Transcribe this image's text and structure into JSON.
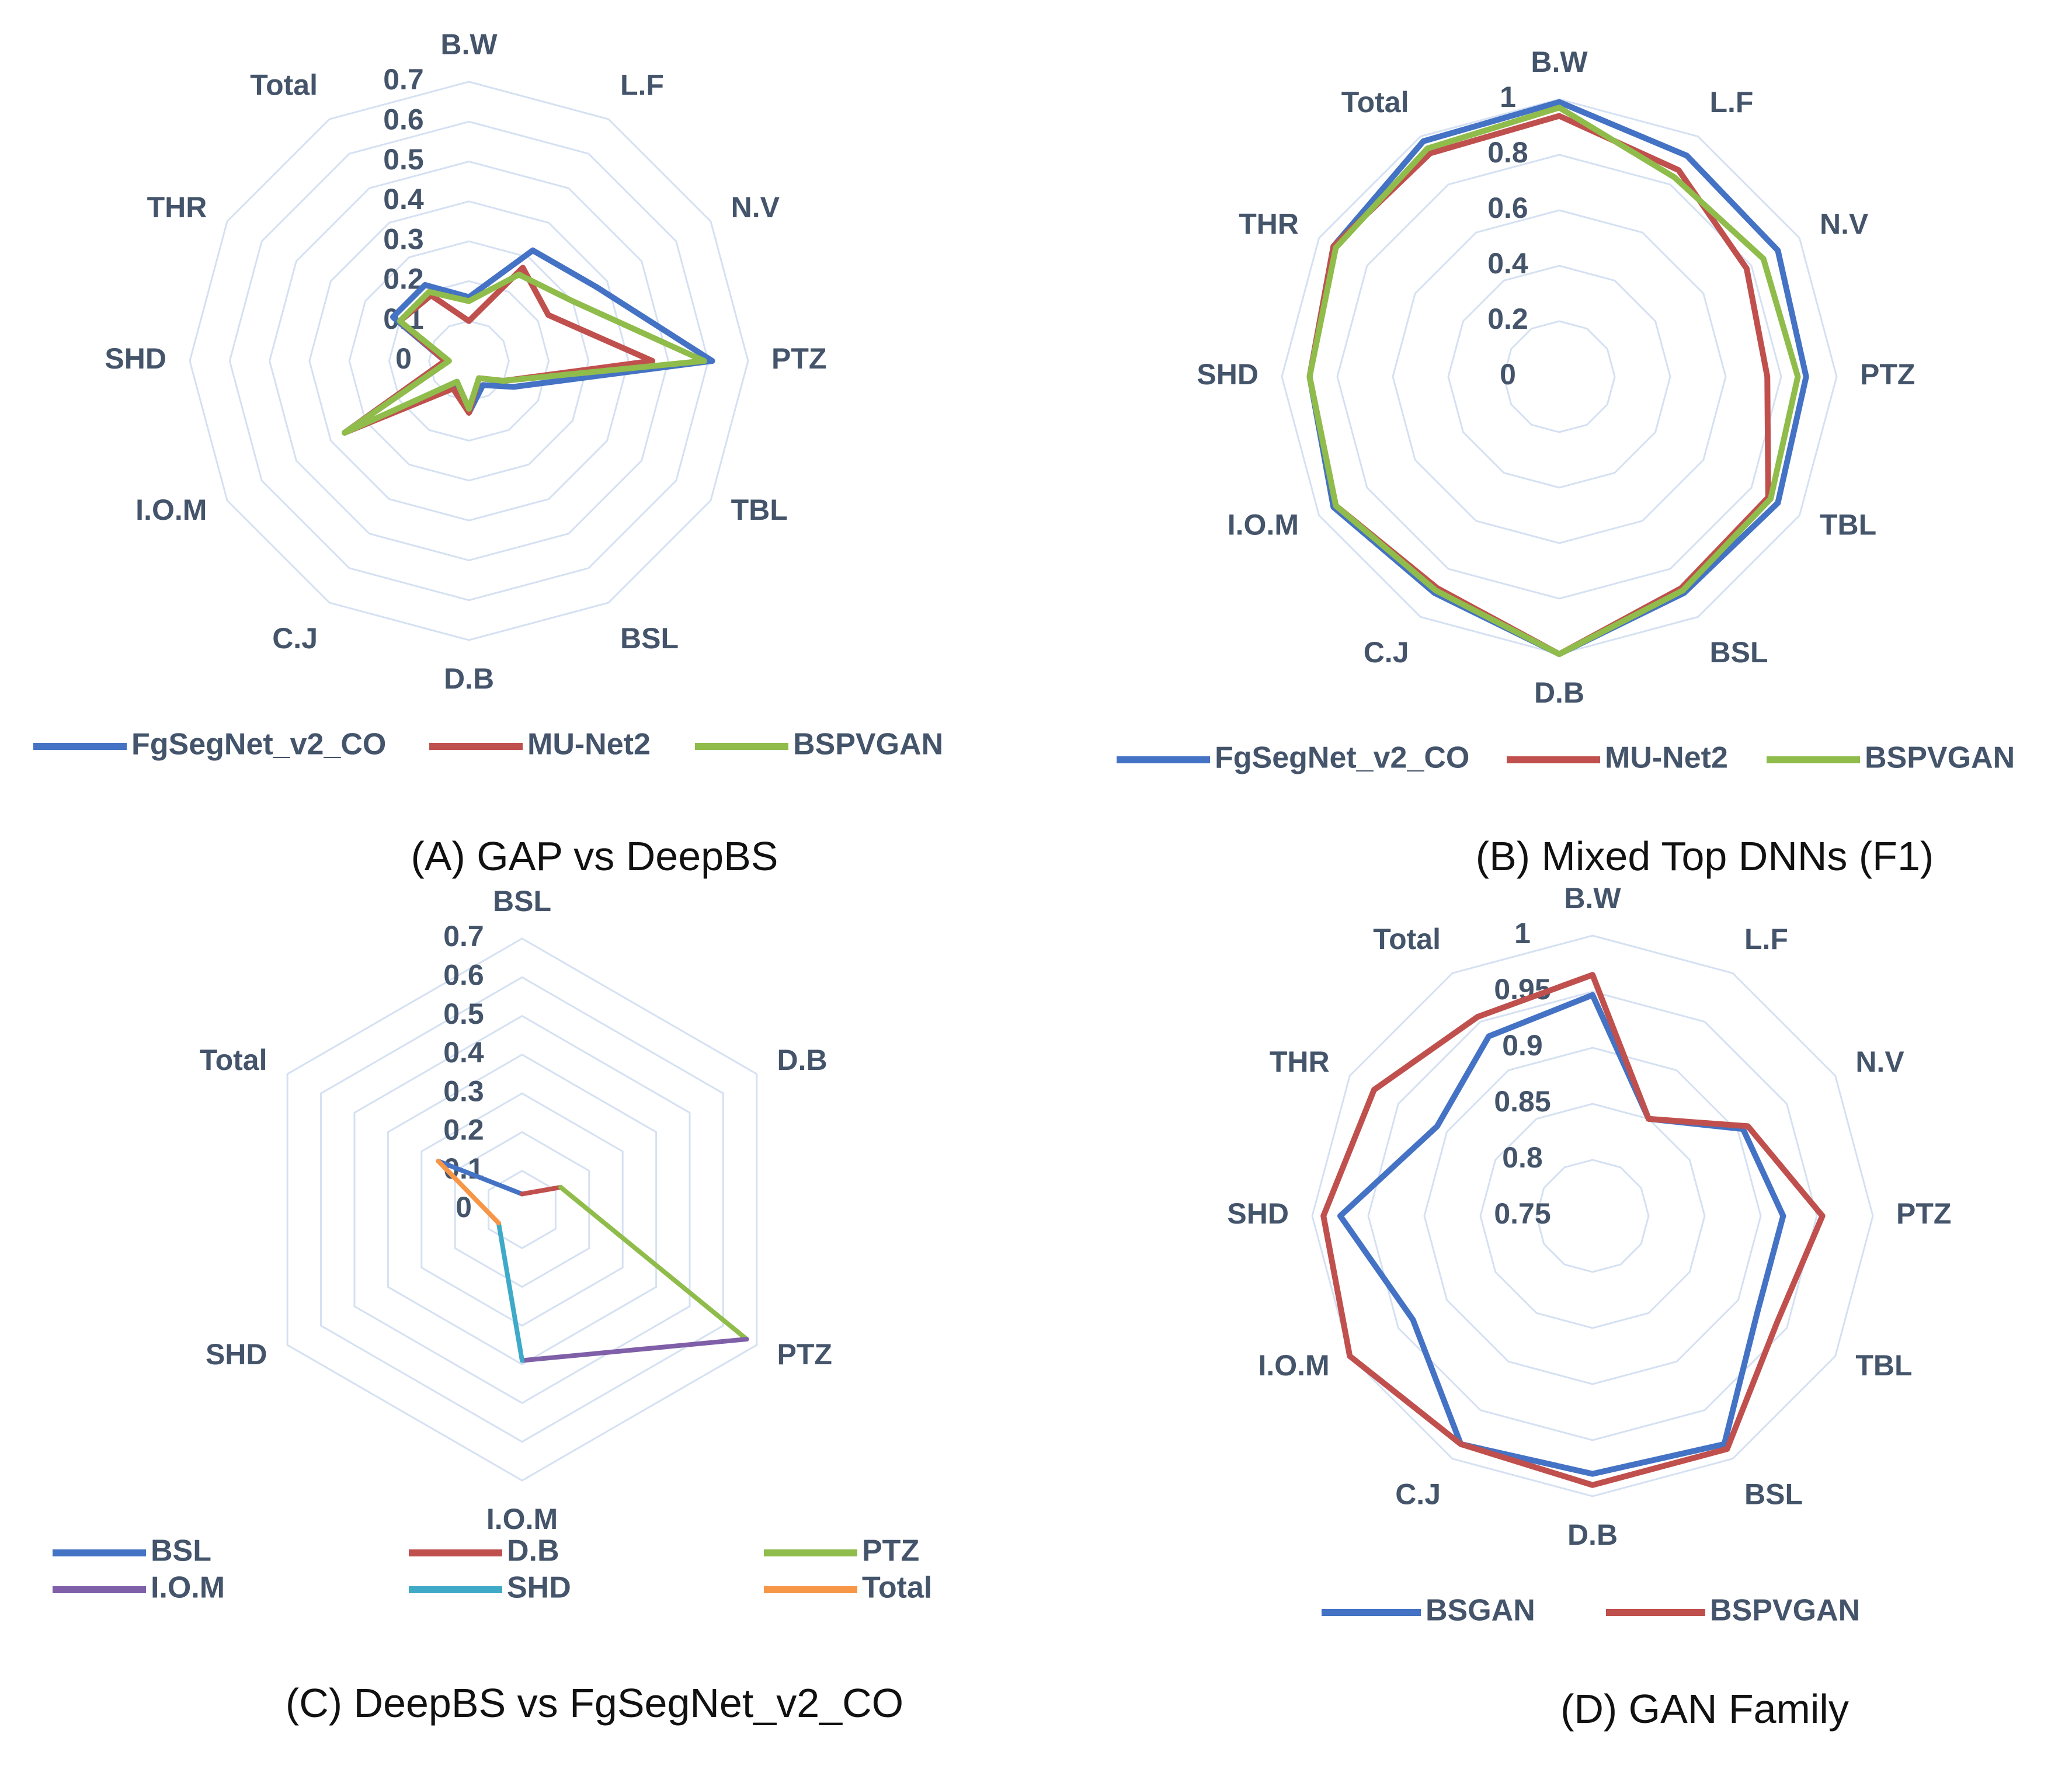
{
  "chart_data": [
    {
      "type": "radar",
      "caption": "(A)  GAP vs DeepBS",
      "axes": [
        "B.W",
        "L.F",
        "N.V",
        "PTZ",
        "TBL",
        "BSL",
        "D.B",
        "C.J",
        "I.O.M",
        "SHD",
        "THR",
        "Total"
      ],
      "range": [
        0,
        0.7
      ],
      "ticks": [
        "0",
        "0.1",
        "0.2",
        "0.3",
        "0.4",
        "0.5",
        "0.6",
        "0.7"
      ],
      "tick_values": [
        0,
        0.1,
        0.2,
        0.3,
        0.4,
        0.5,
        0.6,
        0.7
      ],
      "grid": true,
      "legend_position": "bottom",
      "series": [
        {
          "name": "FgSegNet_v2_CO",
          "color": "#4472c4",
          "values": [
            0.16,
            0.32,
            0.37,
            0.61,
            0.13,
            0.07,
            0.13,
            0.07,
            0.36,
            0.06,
            0.22,
            0.22
          ]
        },
        {
          "name": "MU-Net2",
          "color": "#c0504d",
          "values": [
            0.1,
            0.27,
            0.23,
            0.46,
            0.1,
            0.05,
            0.13,
            0.08,
            0.36,
            0.06,
            0.2,
            0.19
          ]
        },
        {
          "name": "BSPVGAN",
          "color": "#8fbc4a",
          "values": [
            0.15,
            0.25,
            0.3,
            0.59,
            0.1,
            0.05,
            0.12,
            0.06,
            0.36,
            0.05,
            0.2,
            0.2
          ]
        }
      ]
    },
    {
      "type": "radar",
      "caption": "(B)  Mixed Top DNNs (F1)",
      "axes": [
        "B.W",
        "L.F",
        "N.V",
        "PTZ",
        "TBL",
        "BSL",
        "D.B",
        "C.J",
        "I.O.M",
        "SHD",
        "THR",
        "Total"
      ],
      "range": [
        0,
        1
      ],
      "ticks": [
        "0",
        "0.2",
        "0.4",
        "0.6",
        "0.8",
        "1"
      ],
      "tick_values": [
        0,
        0.2,
        0.4,
        0.6,
        0.8,
        1
      ],
      "grid": true,
      "legend_position": "bottom",
      "series": [
        {
          "name": "FgSegNet_v2_CO",
          "color": "#4472c4",
          "values": [
            0.99,
            0.92,
            0.91,
            0.89,
            0.91,
            0.9,
            1.0,
            0.9,
            0.94,
            0.9,
            0.94,
            0.98
          ]
        },
        {
          "name": "MU-Net2",
          "color": "#c0504d",
          "values": [
            0.94,
            0.86,
            0.78,
            0.75,
            0.87,
            0.88,
            1.0,
            0.88,
            0.93,
            0.9,
            0.94,
            0.93
          ]
        },
        {
          "name": "BSPVGAN",
          "color": "#8fbc4a",
          "values": [
            0.97,
            0.83,
            0.85,
            0.86,
            0.88,
            0.89,
            1.0,
            0.89,
            0.93,
            0.9,
            0.93,
            0.95
          ]
        }
      ]
    },
    {
      "type": "radar",
      "caption": "(C)  DeepBS vs FgSegNet_v2_CO",
      "axes": [
        "BSL",
        "D.B",
        "PTZ",
        "I.O.M",
        "SHD",
        "Total"
      ],
      "range": [
        0,
        0.7
      ],
      "ticks": [
        "0",
        "0.1",
        "0.2",
        "0.3",
        "0.4",
        "0.5",
        "0.6",
        "0.7"
      ],
      "tick_values": [
        0,
        0.1,
        0.2,
        0.3,
        0.4,
        0.5,
        0.6,
        0.7
      ],
      "grid": true,
      "legend_position": "bottom",
      "values": [
        0.04,
        0.115,
        0.67,
        0.39,
        0.07,
        0.25
      ],
      "series": [
        {
          "name": "BSL",
          "color": "#4472c4",
          "from": "Total",
          "to": "BSL"
        },
        {
          "name": "D.B",
          "color": "#c0504d",
          "from": "BSL",
          "to": "D.B"
        },
        {
          "name": "PTZ",
          "color": "#8fbc4a",
          "from": "D.B",
          "to": "PTZ"
        },
        {
          "name": "I.O.M",
          "color": "#7f5fa8",
          "from": "PTZ",
          "to": "I.O.M"
        },
        {
          "name": "SHD",
          "color": "#3fa9c8",
          "from": "I.O.M",
          "to": "SHD"
        },
        {
          "name": "Total",
          "color": "#f79646",
          "from": "SHD",
          "to": "Total"
        }
      ]
    },
    {
      "type": "radar",
      "caption": "(D)  GAN Family",
      "axes": [
        "B.W",
        "L.F",
        "N.V",
        "PTZ",
        "TBL",
        "BSL",
        "D.B",
        "C.J",
        "I.O.M",
        "SHD",
        "THR",
        "Total"
      ],
      "range": [
        0.75,
        1
      ],
      "ticks": [
        "0.75",
        "0.8",
        "0.85",
        "0.9",
        "0.95",
        "1"
      ],
      "tick_values": [
        0.75,
        0.8,
        0.85,
        0.9,
        0.95,
        1
      ],
      "grid": true,
      "legend_position": "bottom",
      "series": [
        {
          "name": "BSGAN",
          "color": "#4472c4",
          "values": [
            0.947,
            0.85,
            0.905,
            0.92,
            0.92,
            0.985,
            0.98,
            0.985,
            0.935,
            0.975,
            0.91,
            0.935
          ]
        },
        {
          "name": "BSPVGAN",
          "color": "#c0504d",
          "values": [
            0.965,
            0.85,
            0.91,
            0.955,
            0.94,
            0.99,
            0.99,
            0.985,
            1.0,
            0.99,
            0.975,
            0.955
          ]
        }
      ]
    }
  ]
}
